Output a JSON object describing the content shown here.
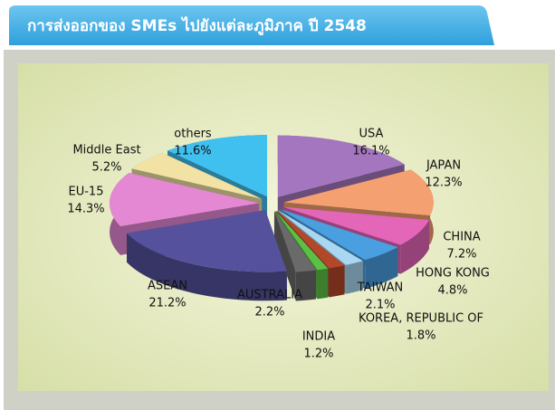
{
  "chart_data": {
    "type": "pie",
    "title": "การส่งออกของ SMEs ไปยังแต่ละภูมิภาค ปี 2548",
    "categories": [
      "USA",
      "JAPAN",
      "CHINA",
      "HONG KONG",
      "TAIWAN",
      "KOREA, REPUBLIC OF",
      "INDIA",
      "AUSTRALIA",
      "ASEAN",
      "EU-15",
      "Middle East",
      "others"
    ],
    "values": [
      16.1,
      12.3,
      7.2,
      4.8,
      2.1,
      1.8,
      1.2,
      2.2,
      21.2,
      14.3,
      5.2,
      11.6
    ],
    "value_labels": [
      "16.1%",
      "12.3%",
      "7.2%",
      "4.8%",
      "2.1%",
      "1.8%",
      "1.2%",
      "2.2%",
      "21.2%",
      "14.3%",
      "5.2%",
      "11.6%"
    ],
    "colors": [
      "#a476bf",
      "#f5a070",
      "#e466b8",
      "#4a9fe0",
      "#a9d6f0",
      "#b3472a",
      "#5cc046",
      "#6a6a6a",
      "#55519c",
      "#e488d4",
      "#f2e2a4",
      "#3fc0ef"
    ]
  }
}
